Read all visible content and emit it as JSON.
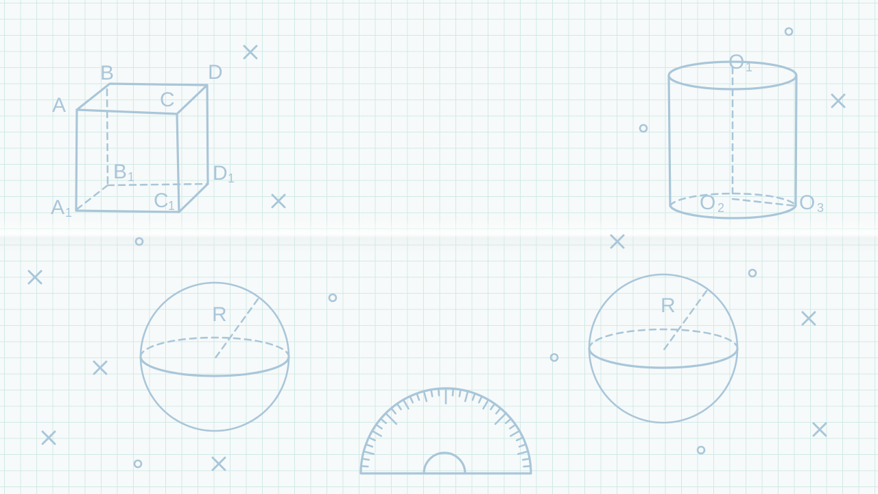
{
  "cube": {
    "labels": {
      "A": "A",
      "B": "B",
      "C": "C",
      "D": "D",
      "A1": "A",
      "A1_sub": "1",
      "B1": "B",
      "B1_sub": "1",
      "C1": "C",
      "C1_sub": "1",
      "D1": "D",
      "D1_sub": "1"
    }
  },
  "cylinder": {
    "labels": {
      "O1": "O",
      "O1_sub": "1",
      "O2": "O",
      "O2_sub": "2",
      "O3": "O",
      "O3_sub": "3"
    }
  },
  "sphere_left": {
    "radius_label": "R"
  },
  "sphere_right": {
    "radius_label": "R"
  },
  "stroke_color": "#a9c6d9",
  "grid_color": "#cfe9e6",
  "background_color": "#f7fafa"
}
